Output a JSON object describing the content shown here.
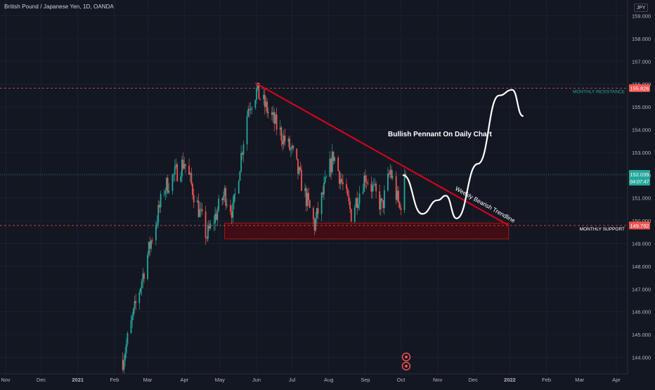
{
  "header": {
    "symbol": "British Pound / Japanese Yen, 1D, OANDA",
    "currency": "JPY"
  },
  "colors": {
    "background": "#131722",
    "up": "#26a69a",
    "down": "#ef5350",
    "trendline": "#e0001b",
    "resistance": "#26a69a",
    "support": "#ffffff",
    "projection": "#ffffff",
    "zone_fill": "#4a0a10",
    "zone_border": "#b71c1c"
  },
  "chart_data": {
    "type": "candlestick",
    "y_ticks": [
      "159.000",
      "158.000",
      "157.000",
      "156.000",
      "155.000",
      "154.000",
      "153.000",
      "152.000",
      "151.000",
      "150.000",
      "149.000",
      "148.000",
      "147.000",
      "146.000",
      "145.000",
      "144.000"
    ],
    "x_ticks": [
      "Nov",
      "Dec",
      "2021",
      "Feb",
      "Mar",
      "Apr",
      "May",
      "Jun",
      "Jul",
      "Aug",
      "Sep",
      "Oct",
      "Nov",
      "Dec",
      "2022",
      "Feb",
      "Mar",
      "Apr"
    ],
    "ylim": [
      143.8,
      159.3
    ],
    "price_tags": [
      {
        "id": "resistance",
        "value": "155.826"
      },
      {
        "id": "last",
        "value": "152.039",
        "countdown": "04:07:47"
      },
      {
        "id": "support",
        "value": "149.792"
      }
    ],
    "levels": [
      {
        "name": "MONTHLY RESISTANCE",
        "value": 155.826
      },
      {
        "name": "MONTHLY SUPPORT",
        "value": 149.792
      },
      {
        "name": "last",
        "value": 152.039
      }
    ],
    "annotations": {
      "pattern_title": "Bullish Pennant On Daily Chart",
      "trendline_label": "Weekly Bearish Trendline"
    },
    "trendline": [
      {
        "date": "2021-05-31",
        "value": 156.05
      },
      {
        "date": "2021-12-31",
        "value": 149.8
      }
    ],
    "support_zone": {
      "from": "2021-05-05",
      "to": "2021-12-31",
      "top": 149.9,
      "bottom": 149.2
    },
    "projection_path": [
      {
        "date": "2021-10-03",
        "value": 152.0
      },
      {
        "date": "2021-10-19",
        "value": 150.3
      },
      {
        "date": "2021-11-01",
        "value": 150.9
      },
      {
        "date": "2021-11-08",
        "value": 151.1
      },
      {
        "date": "2021-11-17",
        "value": 150.1
      },
      {
        "date": "2021-12-05",
        "value": 152.5
      },
      {
        "date": "2021-12-23",
        "value": 155.5
      },
      {
        "date": "2022-01-03",
        "value": 155.75
      },
      {
        "date": "2022-01-12",
        "value": 154.6
      }
    ],
    "anchors": [
      {
        "date": "2021-02-08",
        "value": 143.9
      },
      {
        "date": "2021-03-01",
        "value": 148.5
      },
      {
        "date": "2021-03-15",
        "value": 151.4
      },
      {
        "date": "2021-04-01",
        "value": 152.6
      },
      {
        "date": "2021-04-20",
        "value": 149.3
      },
      {
        "date": "2021-05-05",
        "value": 151.2
      },
      {
        "date": "2021-05-12",
        "value": 150.4
      },
      {
        "date": "2021-05-25",
        "value": 155.0
      },
      {
        "date": "2021-06-01",
        "value": 155.7
      },
      {
        "date": "2021-06-14",
        "value": 154.5
      },
      {
        "date": "2021-07-01",
        "value": 153.0
      },
      {
        "date": "2021-07-20",
        "value": 149.8
      },
      {
        "date": "2021-08-05",
        "value": 152.9
      },
      {
        "date": "2021-08-20",
        "value": 150.3
      },
      {
        "date": "2021-09-01",
        "value": 152.0
      },
      {
        "date": "2021-09-15",
        "value": 150.6
      },
      {
        "date": "2021-09-22",
        "value": 152.2
      },
      {
        "date": "2021-09-30",
        "value": 150.5
      },
      {
        "date": "2021-10-05",
        "value": 152.039
      }
    ]
  }
}
